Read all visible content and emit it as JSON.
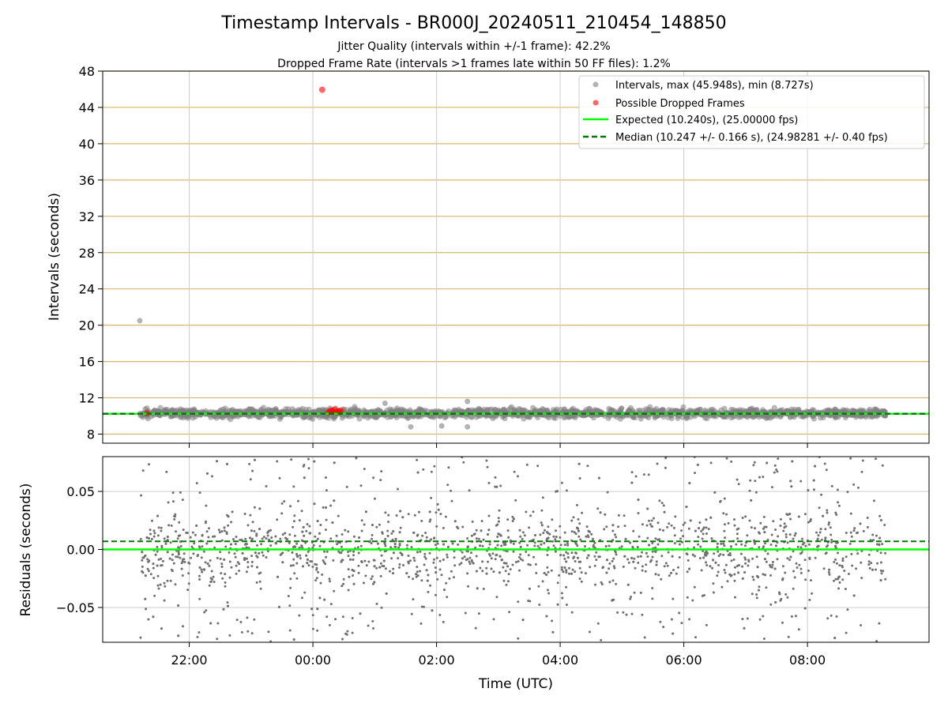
{
  "chart_data": [
    {
      "type": "scatter",
      "panel": "top",
      "title": "Timestamp Intervals - BR000J_20240511_210454_148850",
      "subtitle_lines": [
        "Jitter Quality (intervals within +/-1 frame): 42.2%",
        "Dropped Frame Rate (intervals >1 frames late within 50 FF files): 1.2%"
      ],
      "ylabel": "Intervals (seconds)",
      "ylim": [
        7,
        48
      ],
      "yticks": [
        8,
        12,
        16,
        20,
        24,
        28,
        32,
        36,
        40,
        44,
        48
      ],
      "ytick_labels": [
        "8",
        "12",
        "16",
        "20",
        "24",
        "28",
        "32",
        "36",
        "40",
        "44",
        "48"
      ],
      "grid": "on",
      "legend_placement": "top-right",
      "legend": [
        "Intervals, max (45.948s), min (8.727s)",
        "Possible Dropped Frames",
        "Expected (10.240s), (25.00000 fps)",
        "Median (10.247 +/- 0.166 s), (24.98281 +/- 0.40 fps)"
      ],
      "series": [
        {
          "name": "Intervals, max (45.948s), min (8.727s)",
          "kind": "points",
          "color": "#808080",
          "time_range": [
            "21:12",
            "09:16"
          ],
          "typical_range": [
            9.8,
            10.8
          ],
          "notable_points": [
            {
              "time": "21:12",
              "value": 20.5
            },
            {
              "time": "02:30",
              "value": 11.6
            },
            {
              "time": "01:10",
              "value": 11.4
            },
            {
              "time": "01:35",
              "value": 8.8
            },
            {
              "time": "02:30",
              "value": 8.8
            },
            {
              "time": "02:05",
              "value": 8.9
            }
          ]
        },
        {
          "name": "Possible Dropped Frames",
          "kind": "points",
          "color": "#ff0000",
          "points": [
            {
              "time": "00:09",
              "value": 45.948
            },
            {
              "time": "21:19",
              "value": 10.3
            },
            {
              "time": "00:15",
              "value": 10.4
            },
            {
              "time": "00:17",
              "value": 10.6
            },
            {
              "time": "00:19",
              "value": 10.5
            },
            {
              "time": "00:21",
              "value": 10.7
            },
            {
              "time": "00:23",
              "value": 10.4
            },
            {
              "time": "00:25",
              "value": 10.5
            },
            {
              "time": "00:27",
              "value": 10.6
            }
          ]
        },
        {
          "name": "Expected (10.240s), (25.00000 fps)",
          "kind": "hline",
          "value": 10.24,
          "color": "#00ff00",
          "style": "solid"
        },
        {
          "name": "Median (10.247 +/- 0.166 s), (24.98281 +/- 0.40 fps)",
          "kind": "hline",
          "value": 10.247,
          "color": "#007700",
          "style": "dashed"
        }
      ]
    },
    {
      "type": "scatter",
      "panel": "bottom",
      "xlabel": "Time (UTC)",
      "ylabel": "Residuals (seconds)",
      "ylim": [
        -0.08,
        0.08
      ],
      "yticks": [
        -0.05,
        0.0,
        0.05
      ],
      "ytick_labels": [
        "−0.05",
        "0.00",
        "0.05"
      ],
      "xlim": [
        "20:36",
        "09:58"
      ],
      "xticks": [
        "22:00",
        "00:00",
        "02:00",
        "04:00",
        "06:00",
        "08:00"
      ],
      "grid": "on",
      "series": [
        {
          "kind": "points",
          "color": "#707070",
          "time_range": [
            "21:12",
            "09:16"
          ],
          "value_range": [
            -0.08,
            0.08
          ]
        },
        {
          "kind": "hline",
          "value": 0.0,
          "color": "#00ff00",
          "style": "solid"
        },
        {
          "kind": "hline",
          "value": 0.007,
          "color": "#007700",
          "style": "dashed"
        }
      ]
    }
  ]
}
